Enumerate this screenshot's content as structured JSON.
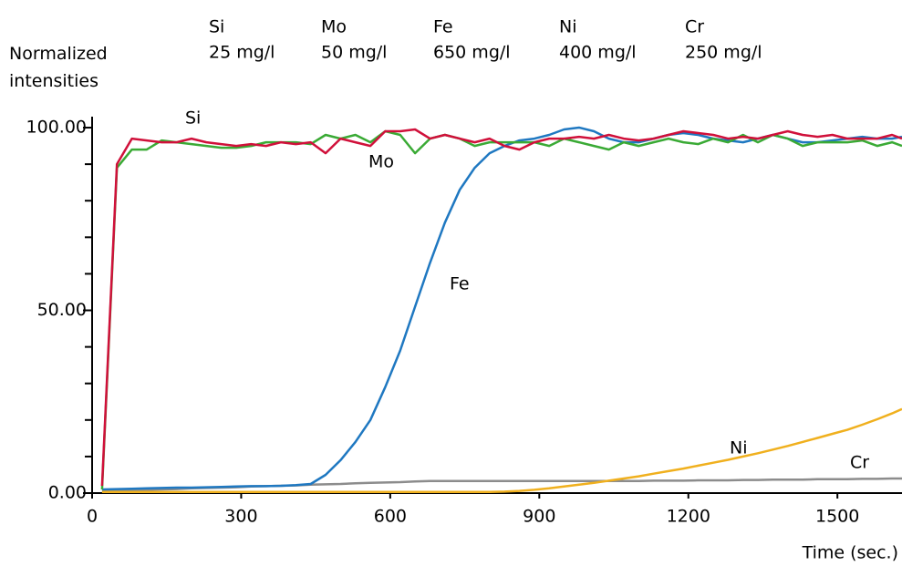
{
  "chart_data": {
    "type": "line",
    "ylabel": "Normalized intensities",
    "xlabel": "Time (sec.)",
    "xlim": [
      0,
      1630
    ],
    "xticks": [
      0,
      300,
      600,
      900,
      1200,
      1500
    ],
    "ylim": [
      0,
      103
    ],
    "yticks": [
      {
        "value": 0,
        "label": "0.00"
      },
      {
        "value": 50,
        "label": "50.00"
      },
      {
        "value": 100,
        "label": "100.00"
      }
    ],
    "yminor_ticks": [
      10,
      20,
      30,
      40,
      60,
      70,
      80,
      90
    ],
    "x": [
      20,
      50,
      80,
      110,
      140,
      170,
      200,
      230,
      260,
      290,
      320,
      350,
      380,
      410,
      440,
      470,
      500,
      530,
      560,
      590,
      620,
      650,
      680,
      710,
      740,
      770,
      800,
      830,
      860,
      890,
      920,
      950,
      980,
      1010,
      1040,
      1070,
      1100,
      1130,
      1160,
      1190,
      1220,
      1250,
      1280,
      1310,
      1340,
      1370,
      1400,
      1430,
      1460,
      1490,
      1520,
      1550,
      1580,
      1610,
      1630
    ],
    "series": [
      {
        "name": "Si",
        "concentration": "25 mg/l",
        "color": "#d0103a",
        "values": [
          2,
          90,
          97,
          96.5,
          96,
          96,
          97,
          96,
          95.5,
          95,
          95.5,
          95,
          96,
          95.5,
          96,
          93,
          97,
          96,
          95,
          99,
          99,
          99.5,
          97,
          98,
          97,
          96,
          97,
          95,
          94,
          96,
          97,
          97,
          97.5,
          97,
          98,
          97,
          96.5,
          97,
          98,
          99,
          98.5,
          98,
          97,
          97.5,
          97,
          98,
          99,
          98,
          97.5,
          98,
          97,
          97,
          97,
          98,
          97
        ]
      },
      {
        "name": "Mo",
        "concentration": "50 mg/l",
        "color": "#3aaa35",
        "values": [
          1,
          89,
          94,
          94,
          96.5,
          96,
          95.5,
          95,
          94.5,
          94.5,
          95,
          96,
          96,
          96,
          95.5,
          98,
          97,
          98,
          96,
          99,
          98,
          93,
          97,
          98,
          97,
          95,
          96,
          96,
          96,
          96,
          95,
          97,
          96,
          95,
          94,
          96,
          95,
          96,
          97,
          96,
          95.5,
          97,
          96,
          98,
          96,
          98,
          97,
          95,
          96,
          96,
          96,
          96.5,
          95,
          96,
          95
        ]
      },
      {
        "name": "Fe",
        "concentration": "650 mg/l",
        "color": "#1f78c1",
        "values": [
          1,
          1.1,
          1.2,
          1.3,
          1.4,
          1.5,
          1.5,
          1.6,
          1.7,
          1.8,
          1.9,
          1.9,
          2,
          2.2,
          2.5,
          5,
          9,
          14,
          20,
          29,
          39,
          51,
          63,
          74,
          83,
          89,
          93,
          95,
          96.5,
          97,
          98,
          99.5,
          100,
          99,
          97,
          96,
          96,
          97,
          98,
          98.5,
          98,
          97,
          96.5,
          96,
          97,
          98,
          97,
          96,
          96,
          96.5,
          97,
          97.5,
          97,
          97,
          97.5
        ]
      },
      {
        "name": "Ni",
        "concentration": "400 mg/l",
        "color": "#f0b01e",
        "values": [
          0.3,
          0.3,
          0.3,
          0.3,
          0.3,
          0.3,
          0.3,
          0.3,
          0.3,
          0.3,
          0.3,
          0.3,
          0.3,
          0.3,
          0.3,
          0.3,
          0.3,
          0.3,
          0.3,
          0.3,
          0.3,
          0.3,
          0.3,
          0.3,
          0.3,
          0.3,
          0.3,
          0.4,
          0.6,
          0.9,
          1.3,
          1.8,
          2.3,
          2.8,
          3.4,
          4.0,
          4.6,
          5.3,
          6.0,
          6.7,
          7.5,
          8.3,
          9.1,
          10.0,
          10.9,
          11.9,
          12.9,
          14.0,
          15.1,
          16.2,
          17.3,
          18.7,
          20.2,
          21.8,
          23
        ]
      },
      {
        "name": "Cr",
        "concentration": "250 mg/l",
        "color": "#8c8c8c",
        "legend_color": "#000000",
        "values": [
          0.5,
          0.6,
          0.7,
          0.9,
          1.0,
          1.1,
          1.3,
          1.4,
          1.5,
          1.6,
          1.8,
          1.9,
          2.0,
          2.1,
          2.3,
          2.4,
          2.5,
          2.7,
          2.8,
          2.9,
          3.0,
          3.2,
          3.3,
          3.3,
          3.3,
          3.3,
          3.3,
          3.3,
          3.3,
          3.3,
          3.3,
          3.3,
          3.3,
          3.3,
          3.3,
          3.3,
          3.3,
          3.4,
          3.4,
          3.4,
          3.5,
          3.5,
          3.5,
          3.6,
          3.6,
          3.7,
          3.7,
          3.7,
          3.8,
          3.8,
          3.8,
          3.9,
          3.9,
          4.0,
          4.0
        ]
      }
    ]
  }
}
